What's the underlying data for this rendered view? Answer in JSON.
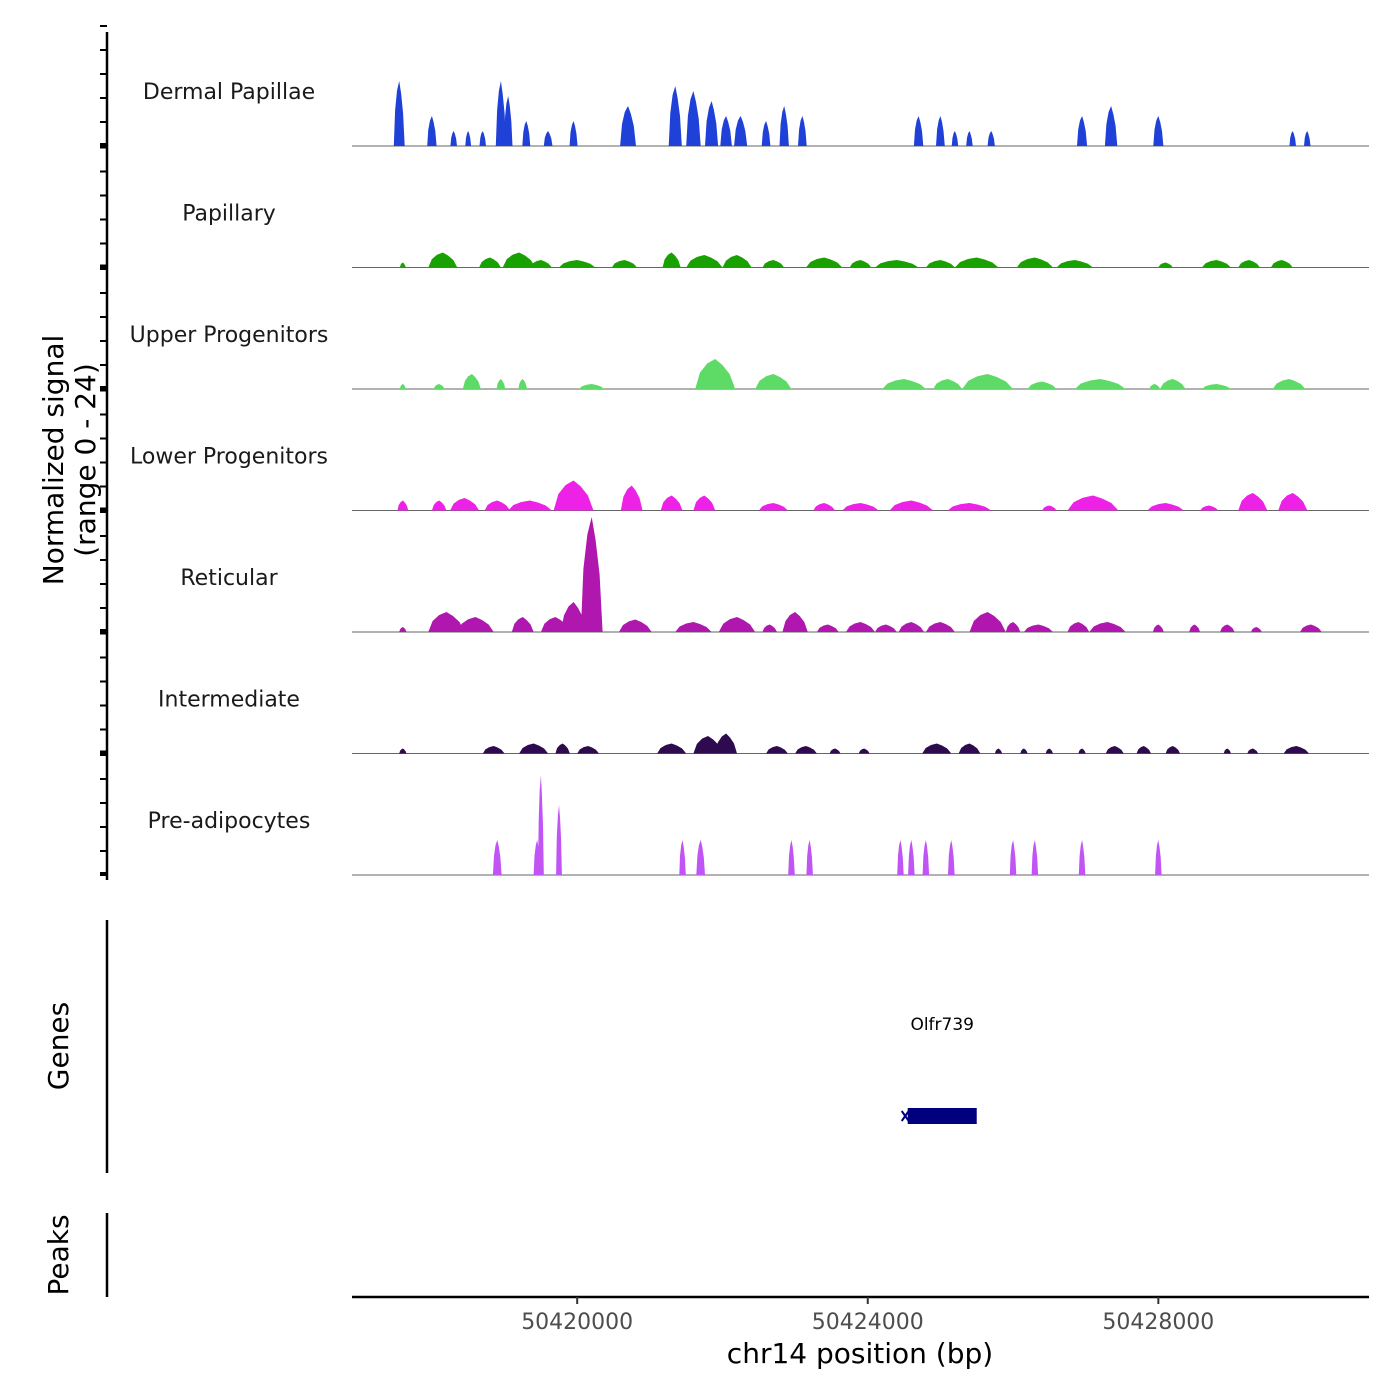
{
  "chart_data": {
    "type": "area",
    "title": "",
    "ylabel_line1": "Normalized signal",
    "ylabel_line2": "(range 0 - 24)",
    "ylim": [
      0,
      24
    ],
    "xlabel": "chr14 position (bp)",
    "xlim": [
      50416900,
      50430900
    ],
    "x_ticks": [
      50420000,
      50424000,
      50428000
    ],
    "x_tick_labels": [
      "50420000",
      "50424000",
      "50428000"
    ],
    "tracks": [
      {
        "name": "Dermal Papillae",
        "color": "#1F41D8",
        "peaks": [
          [
            50417550,
            150,
            13
          ],
          [
            50418000,
            130,
            6
          ],
          [
            50418300,
            90,
            3
          ],
          [
            50418500,
            80,
            3
          ],
          [
            50418700,
            90,
            3
          ],
          [
            50418950,
            140,
            13
          ],
          [
            50419050,
            120,
            10
          ],
          [
            50419300,
            110,
            5
          ],
          [
            50419600,
            120,
            3
          ],
          [
            50419950,
            110,
            5
          ],
          [
            50420700,
            220,
            8
          ],
          [
            50421350,
            180,
            12
          ],
          [
            50421600,
            200,
            11
          ],
          [
            50421850,
            180,
            9
          ],
          [
            50422050,
            160,
            6
          ],
          [
            50422250,
            180,
            6
          ],
          [
            50422600,
            120,
            5
          ],
          [
            50422850,
            130,
            8
          ],
          [
            50423100,
            120,
            6
          ],
          [
            50424700,
            130,
            6
          ],
          [
            50425000,
            120,
            6
          ],
          [
            50425200,
            90,
            3
          ],
          [
            50425400,
            90,
            3
          ],
          [
            50425700,
            100,
            3
          ],
          [
            50426950,
            140,
            6
          ],
          [
            50427350,
            170,
            8
          ],
          [
            50428000,
            140,
            6
          ],
          [
            50429850,
            90,
            3
          ],
          [
            50430050,
            90,
            3
          ]
        ]
      },
      {
        "name": "Papillary",
        "color": "#18A100",
        "peaks": [
          [
            50417600,
            80,
            1
          ],
          [
            50418150,
            400,
            3
          ],
          [
            50418800,
            300,
            2
          ],
          [
            50419200,
            450,
            3
          ],
          [
            50419500,
            300,
            1.5
          ],
          [
            50420000,
            500,
            1.5
          ],
          [
            50420650,
            350,
            1.5
          ],
          [
            50421300,
            250,
            3
          ],
          [
            50421750,
            500,
            2.5
          ],
          [
            50422200,
            400,
            2.5
          ],
          [
            50422700,
            300,
            1.5
          ],
          [
            50423400,
            500,
            2
          ],
          [
            50423900,
            300,
            1.5
          ],
          [
            50424400,
            600,
            1.5
          ],
          [
            50425000,
            400,
            1.5
          ],
          [
            50425500,
            600,
            2
          ],
          [
            50426300,
            500,
            2
          ],
          [
            50426850,
            500,
            1.5
          ],
          [
            50428100,
            200,
            1
          ],
          [
            50428800,
            400,
            1.5
          ],
          [
            50429250,
            300,
            1.5
          ],
          [
            50429700,
            300,
            1.5
          ]
        ]
      },
      {
        "name": "Upper Progenitors",
        "color": "#5EDA67",
        "peaks": [
          [
            50417600,
            80,
            1
          ],
          [
            50418100,
            150,
            1
          ],
          [
            50418550,
            250,
            3
          ],
          [
            50418950,
            120,
            2
          ],
          [
            50419250,
            120,
            2
          ],
          [
            50420200,
            350,
            1
          ],
          [
            50421900,
            550,
            6
          ],
          [
            50422700,
            500,
            3
          ],
          [
            50424500,
            600,
            2
          ],
          [
            50425100,
            400,
            2
          ],
          [
            50425650,
            700,
            3
          ],
          [
            50426400,
            400,
            1.5
          ],
          [
            50427200,
            700,
            2
          ],
          [
            50427950,
            150,
            1
          ],
          [
            50428200,
            350,
            2
          ],
          [
            50428800,
            400,
            1
          ],
          [
            50429800,
            450,
            2
          ]
        ]
      },
      {
        "name": "Lower Progenitors",
        "color": "#EE21E6",
        "peaks": [
          [
            50417600,
            150,
            2
          ],
          [
            50418100,
            200,
            2
          ],
          [
            50418450,
            400,
            2.5
          ],
          [
            50418900,
            350,
            2
          ],
          [
            50419350,
            600,
            2
          ],
          [
            50419950,
            550,
            6
          ],
          [
            50420750,
            300,
            5
          ],
          [
            50421300,
            300,
            3
          ],
          [
            50421750,
            300,
            3
          ],
          [
            50422700,
            400,
            1.5
          ],
          [
            50423400,
            300,
            1.5
          ],
          [
            50423900,
            500,
            1.5
          ],
          [
            50424600,
            600,
            2
          ],
          [
            50425400,
            600,
            1.5
          ],
          [
            50426500,
            200,
            1
          ],
          [
            50427100,
            700,
            3
          ],
          [
            50428100,
            500,
            1.5
          ],
          [
            50428700,
            250,
            1
          ],
          [
            50429300,
            400,
            3.5
          ],
          [
            50429850,
            400,
            3.5
          ]
        ]
      },
      {
        "name": "Reticular",
        "color": "#B017AE",
        "peaks": [
          [
            50417600,
            100,
            1
          ],
          [
            50418200,
            500,
            4
          ],
          [
            50418600,
            500,
            3
          ],
          [
            50419250,
            300,
            3
          ],
          [
            50419700,
            400,
            3
          ],
          [
            50419950,
            350,
            6
          ],
          [
            50420200,
            300,
            23
          ],
          [
            50420800,
            450,
            2.5
          ],
          [
            50421600,
            500,
            2
          ],
          [
            50422200,
            500,
            3
          ],
          [
            50422650,
            200,
            1.5
          ],
          [
            50423000,
            350,
            4
          ],
          [
            50423450,
            300,
            1.5
          ],
          [
            50423900,
            400,
            2
          ],
          [
            50424250,
            300,
            1.5
          ],
          [
            50424600,
            350,
            2
          ],
          [
            50425000,
            400,
            2
          ],
          [
            50425650,
            500,
            4
          ],
          [
            50426000,
            200,
            2
          ],
          [
            50426350,
            400,
            1.5
          ],
          [
            50426900,
            300,
            2
          ],
          [
            50427300,
            500,
            2
          ],
          [
            50428000,
            150,
            1.5
          ],
          [
            50428500,
            150,
            1.5
          ],
          [
            50428950,
            200,
            1.5
          ],
          [
            50429350,
            150,
            1
          ],
          [
            50430100,
            300,
            1.5
          ]
        ]
      },
      {
        "name": "Intermediate",
        "color": "#2E0B4E",
        "peaks": [
          [
            50417600,
            100,
            1
          ],
          [
            50418850,
            300,
            1.5
          ],
          [
            50419400,
            400,
            2
          ],
          [
            50419800,
            200,
            2
          ],
          [
            50420150,
            300,
            1.5
          ],
          [
            50421300,
            400,
            2
          ],
          [
            50421800,
            400,
            3.5
          ],
          [
            50422050,
            300,
            4
          ],
          [
            50422750,
            300,
            1.5
          ],
          [
            50423150,
            300,
            1.5
          ],
          [
            50423550,
            150,
            1
          ],
          [
            50423950,
            150,
            1
          ],
          [
            50424950,
            400,
            2
          ],
          [
            50425400,
            300,
            2
          ],
          [
            50425800,
            100,
            1
          ],
          [
            50426150,
            100,
            1
          ],
          [
            50426500,
            100,
            1
          ],
          [
            50426950,
            100,
            1
          ],
          [
            50427400,
            250,
            1.5
          ],
          [
            50427800,
            200,
            1.5
          ],
          [
            50428200,
            200,
            1.5
          ],
          [
            50428950,
            100,
            1
          ],
          [
            50429300,
            150,
            1
          ],
          [
            50429900,
            350,
            1.5
          ]
        ]
      },
      {
        "name": "Pre-adipocytes",
        "color": "#C054F5",
        "peaks": [
          [
            50418900,
            120,
            7
          ],
          [
            50419450,
            100,
            7
          ],
          [
            50419500,
            80,
            20
          ],
          [
            50419750,
            80,
            14
          ],
          [
            50421450,
            90,
            7
          ],
          [
            50421700,
            120,
            7
          ],
          [
            50422950,
            90,
            7
          ],
          [
            50423200,
            90,
            7
          ],
          [
            50424450,
            90,
            7
          ],
          [
            50424600,
            90,
            7
          ],
          [
            50424800,
            90,
            7
          ],
          [
            50425150,
            90,
            7
          ],
          [
            50426000,
            90,
            7
          ],
          [
            50426300,
            90,
            7
          ],
          [
            50426950,
            90,
            7
          ],
          [
            50428000,
            90,
            7
          ]
        ]
      }
    ],
    "genes": [
      {
        "name": "Olfr739",
        "start": 50424550,
        "end": 50425500,
        "strand": "-",
        "color": "#00007F"
      }
    ],
    "peaks_track_label": "Peaks",
    "genes_track_label": "Genes"
  }
}
